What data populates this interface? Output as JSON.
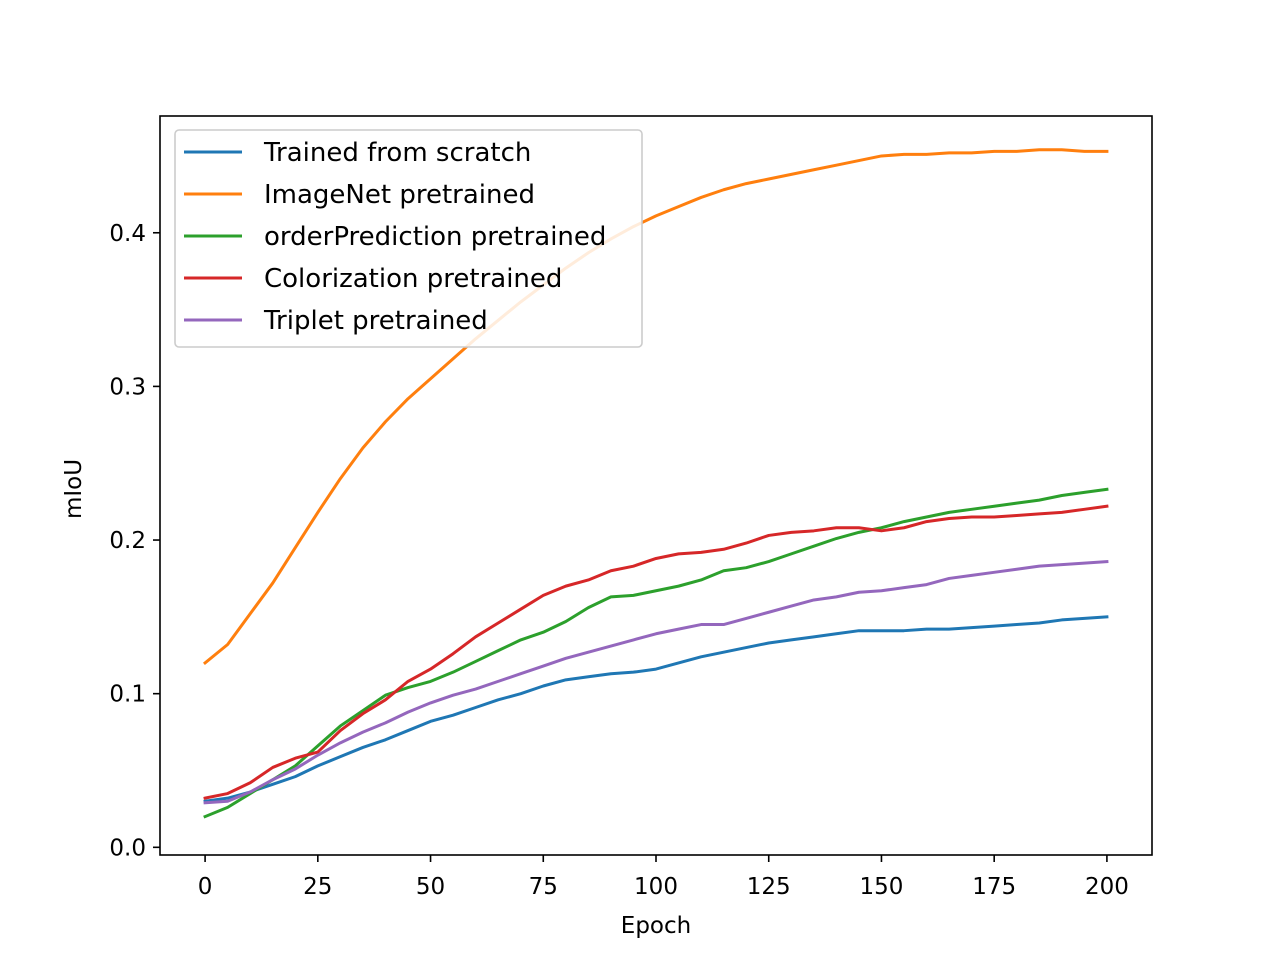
{
  "chart_data": {
    "type": "line",
    "title": "",
    "xlabel": "Epoch",
    "ylabel": "mIoU",
    "xlim": [
      -10,
      210
    ],
    "ylim": [
      -0.005,
      0.476
    ],
    "xticks": [
      0,
      25,
      50,
      75,
      100,
      125,
      150,
      175,
      200
    ],
    "xtick_labels": [
      "0",
      "25",
      "50",
      "75",
      "100",
      "125",
      "150",
      "175",
      "200"
    ],
    "yticks": [
      0.0,
      0.1,
      0.2,
      0.3,
      0.4
    ],
    "ytick_labels": [
      "0.0",
      "0.1",
      "0.2",
      "0.3",
      "0.4"
    ],
    "grid": false,
    "legend_position": "top-left",
    "series": [
      {
        "name": "Trained from scratch",
        "color": "#1f77b4",
        "x": [
          0,
          5,
          10,
          15,
          20,
          25,
          30,
          35,
          40,
          45,
          50,
          55,
          60,
          65,
          70,
          75,
          80,
          85,
          90,
          95,
          100,
          105,
          110,
          115,
          120,
          125,
          130,
          135,
          140,
          145,
          150,
          155,
          160,
          165,
          170,
          175,
          180,
          185,
          190,
          195,
          200
        ],
        "y": [
          0.03,
          0.032,
          0.036,
          0.041,
          0.046,
          0.053,
          0.059,
          0.065,
          0.07,
          0.076,
          0.082,
          0.086,
          0.091,
          0.096,
          0.1,
          0.105,
          0.109,
          0.111,
          0.113,
          0.114,
          0.116,
          0.12,
          0.124,
          0.127,
          0.13,
          0.133,
          0.135,
          0.137,
          0.139,
          0.141,
          0.141,
          0.141,
          0.142,
          0.142,
          0.143,
          0.144,
          0.145,
          0.146,
          0.148,
          0.149,
          0.15
        ]
      },
      {
        "name": "ImageNet pretrained",
        "color": "#ff7f0e",
        "x": [
          0,
          5,
          10,
          15,
          20,
          25,
          30,
          35,
          40,
          45,
          50,
          55,
          60,
          65,
          70,
          75,
          80,
          85,
          90,
          95,
          100,
          105,
          110,
          115,
          120,
          125,
          130,
          135,
          140,
          145,
          150,
          155,
          160,
          165,
          170,
          175,
          180,
          185,
          190,
          195,
          200
        ],
        "y": [
          0.12,
          0.132,
          0.152,
          0.172,
          0.195,
          0.218,
          0.24,
          0.26,
          0.277,
          0.292,
          0.305,
          0.318,
          0.331,
          0.343,
          0.355,
          0.366,
          0.377,
          0.387,
          0.396,
          0.404,
          0.411,
          0.417,
          0.423,
          0.428,
          0.432,
          0.435,
          0.438,
          0.441,
          0.444,
          0.447,
          0.45,
          0.451,
          0.451,
          0.452,
          0.452,
          0.453,
          0.453,
          0.454,
          0.454,
          0.453,
          0.453
        ]
      },
      {
        "name": "orderPrediction pretrained",
        "color": "#2ca02c",
        "x": [
          0,
          5,
          10,
          15,
          20,
          25,
          30,
          35,
          40,
          45,
          50,
          55,
          60,
          65,
          70,
          75,
          80,
          85,
          90,
          95,
          100,
          105,
          110,
          115,
          120,
          125,
          130,
          135,
          140,
          145,
          150,
          155,
          160,
          165,
          170,
          175,
          180,
          185,
          190,
          195,
          200
        ],
        "y": [
          0.02,
          0.026,
          0.035,
          0.044,
          0.053,
          0.066,
          0.079,
          0.089,
          0.099,
          0.104,
          0.108,
          0.114,
          0.121,
          0.128,
          0.135,
          0.14,
          0.147,
          0.156,
          0.163,
          0.164,
          0.167,
          0.17,
          0.174,
          0.18,
          0.182,
          0.186,
          0.191,
          0.196,
          0.201,
          0.205,
          0.208,
          0.212,
          0.215,
          0.218,
          0.22,
          0.222,
          0.224,
          0.226,
          0.229,
          0.231,
          0.233
        ]
      },
      {
        "name": "Colorization pretrained",
        "color": "#d62728",
        "x": [
          0,
          5,
          10,
          15,
          20,
          25,
          30,
          35,
          40,
          45,
          50,
          55,
          60,
          65,
          70,
          75,
          80,
          85,
          90,
          95,
          100,
          105,
          110,
          115,
          120,
          125,
          130,
          135,
          140,
          145,
          150,
          155,
          160,
          165,
          170,
          175,
          180,
          185,
          190,
          195,
          200
        ],
        "y": [
          0.032,
          0.035,
          0.042,
          0.052,
          0.058,
          0.062,
          0.076,
          0.087,
          0.096,
          0.108,
          0.116,
          0.126,
          0.137,
          0.146,
          0.155,
          0.164,
          0.17,
          0.174,
          0.18,
          0.183,
          0.188,
          0.191,
          0.192,
          0.194,
          0.198,
          0.203,
          0.205,
          0.206,
          0.208,
          0.208,
          0.206,
          0.208,
          0.212,
          0.214,
          0.215,
          0.215,
          0.216,
          0.217,
          0.218,
          0.22,
          0.222
        ]
      },
      {
        "name": "Triplet pretrained",
        "color": "#9467bd",
        "x": [
          0,
          5,
          10,
          15,
          20,
          25,
          30,
          35,
          40,
          45,
          50,
          55,
          60,
          65,
          70,
          75,
          80,
          85,
          90,
          95,
          100,
          105,
          110,
          115,
          120,
          125,
          130,
          135,
          140,
          145,
          150,
          155,
          160,
          165,
          170,
          175,
          180,
          185,
          190,
          195,
          200
        ],
        "y": [
          0.029,
          0.03,
          0.036,
          0.044,
          0.051,
          0.06,
          0.068,
          0.075,
          0.081,
          0.088,
          0.094,
          0.099,
          0.103,
          0.108,
          0.113,
          0.118,
          0.123,
          0.127,
          0.131,
          0.135,
          0.139,
          0.142,
          0.145,
          0.145,
          0.149,
          0.153,
          0.157,
          0.161,
          0.163,
          0.166,
          0.167,
          0.169,
          0.171,
          0.175,
          0.177,
          0.179,
          0.181,
          0.183,
          0.184,
          0.185,
          0.186
        ]
      }
    ]
  }
}
